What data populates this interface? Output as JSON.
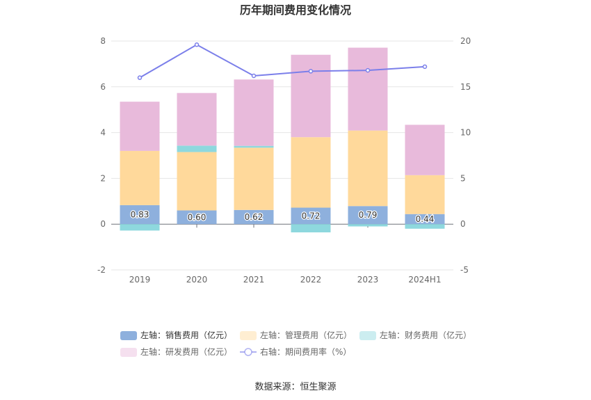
{
  "chart_data": {
    "type": "bar",
    "title": "历年期间费用变化情况",
    "categories": [
      "2019",
      "2020",
      "2021",
      "2022",
      "2023",
      "2024H1"
    ],
    "stacked": true,
    "y_left": {
      "ylim": [
        -2,
        8
      ],
      "ticks": [
        -2,
        0,
        2,
        4,
        6,
        8
      ]
    },
    "y_right": {
      "ylim": [
        -5,
        20
      ],
      "ticks": [
        -5,
        0,
        5,
        10,
        15,
        20
      ]
    },
    "grid": true,
    "legend_position": "bottom",
    "series": [
      {
        "name": "左轴：销售费用（亿元）",
        "axis": "left",
        "type": "bar",
        "color": "#8eb0dd",
        "values": [
          0.83,
          0.6,
          0.62,
          0.72,
          0.79,
          0.44
        ],
        "labels": [
          "0.83",
          "0.60",
          "0.62",
          "0.72",
          "0.79",
          "0.44"
        ]
      },
      {
        "name": "左轴：管理费用（亿元）",
        "axis": "left",
        "type": "bar",
        "color": "#ffd99b",
        "values": [
          2.37,
          2.55,
          2.72,
          3.08,
          3.3,
          1.7
        ]
      },
      {
        "name": "左轴：财务费用（亿元）",
        "axis": "left",
        "type": "bar",
        "color": "#8ed8de",
        "values": [
          -0.28,
          0.28,
          0.08,
          -0.36,
          -0.1,
          -0.2
        ]
      },
      {
        "name": "左轴：研发费用（亿元）",
        "axis": "left",
        "type": "bar",
        "color": "#e8badb",
        "values": [
          2.15,
          2.3,
          2.9,
          3.6,
          3.62,
          2.2
        ]
      },
      {
        "name": "右轴：期间费用率（%）",
        "axis": "right",
        "type": "line",
        "color": "#7b7fea",
        "values": [
          16.0,
          19.6,
          16.2,
          16.7,
          16.8,
          17.2
        ]
      }
    ],
    "legend_active": [
      true,
      false,
      false,
      false,
      false
    ]
  },
  "source": "数据来源：恒生聚源"
}
